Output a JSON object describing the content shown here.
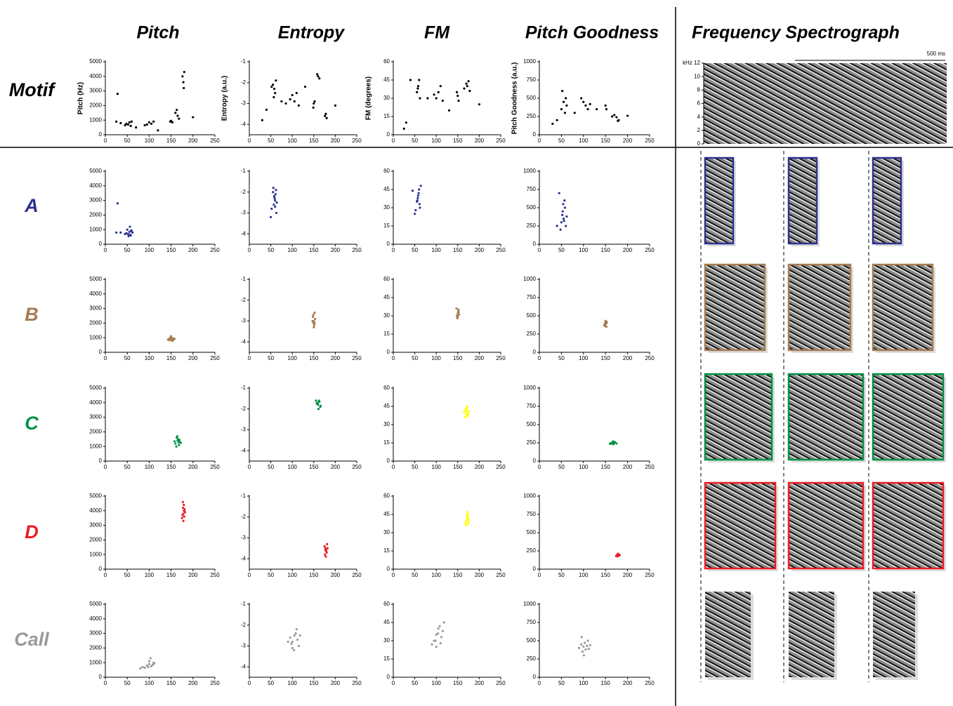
{
  "columns": [
    "Pitch",
    "Entropy",
    "FM",
    "Pitch Goodness",
    "Frequency Spectrograph"
  ],
  "rows": [
    "Motif",
    "A",
    "B",
    "C",
    "D",
    "Call"
  ],
  "spectrograph": {
    "unit": "kHz",
    "ylim": [
      0,
      12
    ],
    "yticks": [
      0,
      2,
      4,
      6,
      8,
      10,
      12
    ],
    "scale_bar": "500 ms"
  },
  "chart_data": [
    {
      "type": "scatter",
      "ylabel": "Pitch (Hz)",
      "color": "#000000",
      "xlim": [
        0,
        250
      ],
      "xticks": [
        0,
        50,
        100,
        150,
        200,
        250
      ],
      "ylim": [
        0,
        5000
      ],
      "yticks": [
        0,
        1000,
        2000,
        3000,
        4000,
        5000
      ],
      "x": [
        52,
        55,
        58,
        48,
        60,
        45,
        35,
        28,
        25,
        150,
        148,
        153,
        165,
        160,
        168,
        163,
        178,
        176,
        180,
        179,
        95,
        100,
        105,
        110,
        90,
        70,
        200,
        120
      ],
      "y": [
        700,
        850,
        600,
        750,
        900,
        650,
        800,
        2800,
        900,
        950,
        900,
        850,
        1300,
        1500,
        1100,
        1700,
        3600,
        4000,
        4300,
        3200,
        700,
        850,
        750,
        900,
        650,
        500,
        1200,
        300
      ]
    },
    {
      "type": "scatter",
      "ylabel": "Entropy (a.u.)",
      "color": "#000000",
      "xlim": [
        0,
        250
      ],
      "xticks": [
        0,
        50,
        100,
        150,
        200,
        250
      ],
      "ylim": [
        -4.5,
        -1
      ],
      "yticks": [
        -1,
        -2,
        -3,
        -4
      ],
      "x": [
        55,
        58,
        60,
        62,
        57,
        52,
        150,
        152,
        149,
        160,
        163,
        158,
        178,
        180,
        176,
        100,
        105,
        110,
        95,
        115,
        40,
        30,
        75,
        85,
        130,
        200
      ],
      "y": [
        -2.1,
        -2.3,
        -2.5,
        -1.9,
        -2.7,
        -2.2,
        -3.0,
        -2.9,
        -3.2,
        -1.7,
        -1.8,
        -1.6,
        -3.5,
        -3.7,
        -3.6,
        -2.6,
        -2.9,
        -2.5,
        -2.8,
        -3.1,
        -3.3,
        -3.8,
        -2.9,
        -3.0,
        -2.2,
        -3.1
      ]
    },
    {
      "type": "scatter",
      "ylabel": "FM (degrees)",
      "color": "#000000",
      "xlim": [
        0,
        250
      ],
      "xticks": [
        0,
        50,
        100,
        150,
        200,
        250
      ],
      "ylim": [
        0,
        60
      ],
      "yticks": [
        0,
        15,
        30,
        45,
        60
      ],
      "x": [
        55,
        58,
        60,
        62,
        57,
        150,
        152,
        148,
        165,
        170,
        175,
        172,
        178,
        100,
        105,
        110,
        115,
        95,
        30,
        40,
        80,
        130,
        200,
        25
      ],
      "y": [
        35,
        40,
        45,
        30,
        38,
        32,
        28,
        35,
        38,
        42,
        44,
        40,
        36,
        30,
        35,
        40,
        28,
        33,
        10,
        45,
        30,
        20,
        25,
        5
      ]
    },
    {
      "type": "scatter",
      "ylabel": "Pitch Goodness (a.u.)",
      "color": "#000000",
      "xlim": [
        0,
        250
      ],
      "xticks": [
        0,
        50,
        100,
        150,
        200,
        250
      ],
      "ylim": [
        0,
        1000
      ],
      "yticks": [
        0,
        250,
        500,
        750,
        1000
      ],
      "x": [
        50,
        55,
        58,
        60,
        52,
        62,
        100,
        105,
        110,
        95,
        115,
        150,
        152,
        165,
        170,
        175,
        180,
        178,
        40,
        30,
        80,
        130,
        200
      ],
      "y": [
        350,
        450,
        300,
        500,
        600,
        400,
        450,
        400,
        350,
        500,
        420,
        400,
        350,
        250,
        270,
        240,
        200,
        190,
        200,
        150,
        300,
        350,
        260
      ]
    },
    {
      "type": "scatter",
      "color": "#2e3192",
      "xlim": [
        0,
        250
      ],
      "xticks": [
        0,
        50,
        100,
        150,
        200,
        250
      ],
      "ylim": [
        0,
        5000
      ],
      "yticks": [
        0,
        1000,
        2000,
        3000,
        4000,
        5000
      ],
      "x": [
        52,
        55,
        58,
        60,
        48,
        62,
        50,
        57,
        45,
        53,
        59,
        35,
        28,
        25,
        56
      ],
      "y": [
        700,
        850,
        600,
        900,
        750,
        800,
        1000,
        650,
        700,
        550,
        950,
        800,
        2800,
        800,
        1200
      ]
    },
    {
      "type": "scatter",
      "color": "#2e3192",
      "xlim": [
        0,
        250
      ],
      "xticks": [
        0,
        50,
        100,
        150,
        200,
        250
      ],
      "ylim": [
        -4.5,
        -1
      ],
      "yticks": [
        -1,
        -2,
        -3,
        -4
      ],
      "x": [
        55,
        58,
        60,
        62,
        57,
        59,
        61,
        52,
        64,
        56,
        60,
        58,
        50,
        63
      ],
      "y": [
        -2.0,
        -2.2,
        -2.4,
        -1.9,
        -2.6,
        -2.3,
        -2.1,
        -2.8,
        -2.5,
        -1.8,
        -2.7,
        -2.2,
        -3.2,
        -3.0
      ]
    },
    {
      "type": "scatter",
      "color": "#2e3192",
      "xlim": [
        0,
        250
      ],
      "xticks": [
        0,
        50,
        100,
        150,
        200,
        250
      ],
      "ylim": [
        0,
        60
      ],
      "yticks": [
        0,
        15,
        30,
        45,
        60
      ],
      "x": [
        55,
        58,
        60,
        62,
        57,
        59,
        61,
        52,
        64,
        56,
        50,
        45
      ],
      "y": [
        35,
        40,
        45,
        30,
        38,
        42,
        33,
        28,
        48,
        36,
        25,
        44
      ]
    },
    {
      "type": "scatter",
      "color": "#2e3192",
      "xlim": [
        0,
        250
      ],
      "xticks": [
        0,
        50,
        100,
        150,
        200,
        250
      ],
      "ylim": [
        0,
        1000
      ],
      "yticks": [
        0,
        250,
        500,
        750,
        1000
      ],
      "x": [
        50,
        52,
        55,
        58,
        60,
        53,
        57,
        45,
        40,
        62,
        56,
        54,
        48
      ],
      "y": [
        300,
        400,
        350,
        500,
        250,
        450,
        600,
        700,
        250,
        380,
        320,
        550,
        200
      ]
    },
    {
      "type": "scatter",
      "color": "#a67c52",
      "xlim": [
        0,
        250
      ],
      "xticks": [
        0,
        50,
        100,
        150,
        200,
        250
      ],
      "ylim": [
        0,
        5000
      ],
      "yticks": [
        0,
        1000,
        2000,
        3000,
        4000,
        5000
      ],
      "x": [
        145,
        150,
        155,
        148,
        152,
        158,
        143,
        150,
        154,
        147,
        153,
        149
      ],
      "y": [
        900,
        950,
        850,
        1000,
        880,
        920,
        870,
        1100,
        960,
        820,
        780,
        930
      ]
    },
    {
      "type": "scatter",
      "color": "#a67c52",
      "xlim": [
        0,
        250
      ],
      "xticks": [
        0,
        50,
        100,
        150,
        200,
        250
      ],
      "ylim": [
        -4.5,
        -1
      ],
      "yticks": [
        -1,
        -2,
        -3,
        -4
      ],
      "x": [
        148,
        150,
        152,
        149,
        151,
        153,
        147,
        150,
        152,
        149
      ],
      "y": [
        -2.8,
        -3.0,
        -3.1,
        -2.7,
        -3.2,
        -2.9,
        -3.0,
        -3.3,
        -2.6,
        -3.1
      ]
    },
    {
      "type": "scatter",
      "color": "#a67c52",
      "xlim": [
        0,
        250
      ],
      "xticks": [
        0,
        50,
        100,
        150,
        200,
        250
      ],
      "ylim": [
        0,
        60
      ],
      "yticks": [
        0,
        15,
        30,
        45,
        60
      ],
      "x": [
        148,
        150,
        152,
        149,
        151,
        153,
        147,
        150,
        152,
        149
      ],
      "y": [
        30,
        32,
        35,
        28,
        34,
        31,
        36,
        29,
        33,
        30
      ]
    },
    {
      "type": "scatter",
      "color": "#a67c52",
      "xlim": [
        0,
        250
      ],
      "xticks": [
        0,
        50,
        100,
        150,
        200,
        250
      ],
      "ylim": [
        0,
        1000
      ],
      "yticks": [
        0,
        250,
        500,
        750,
        1000
      ],
      "x": [
        148,
        150,
        152,
        149,
        151,
        153,
        147,
        150,
        152,
        149
      ],
      "y": [
        380,
        400,
        420,
        360,
        390,
        410,
        370,
        430,
        350,
        400
      ]
    },
    {
      "type": "scatter",
      "color": "#009245",
      "xlim": [
        0,
        250
      ],
      "xticks": [
        0,
        50,
        100,
        150,
        200,
        250
      ],
      "ylim": [
        0,
        5000
      ],
      "yticks": [
        0,
        1000,
        2000,
        3000,
        4000,
        5000
      ],
      "x": [
        160,
        165,
        170,
        163,
        168,
        158,
        172,
        166,
        162,
        169,
        164,
        167
      ],
      "y": [
        1200,
        1400,
        1300,
        1600,
        1100,
        1350,
        1250,
        1500,
        1000,
        1450,
        1700,
        1300
      ]
    },
    {
      "type": "scatter",
      "color": "#009245",
      "xlim": [
        0,
        250
      ],
      "xticks": [
        0,
        50,
        100,
        150,
        200,
        250
      ],
      "ylim": [
        -4.5,
        -1
      ],
      "yticks": [
        -1,
        -2,
        -3,
        -4
      ],
      "x": [
        155,
        158,
        160,
        163,
        165,
        157,
        162,
        166,
        159,
        161
      ],
      "y": [
        -1.6,
        -1.7,
        -1.8,
        -1.65,
        -1.9,
        -1.75,
        -1.6,
        -1.85,
        -1.7,
        -2.0
      ]
    },
    {
      "type": "scatter",
      "color": "#ffff00",
      "xlim": [
        0,
        250
      ],
      "xticks": [
        0,
        50,
        100,
        150,
        200,
        250
      ],
      "ylim": [
        0,
        60
      ],
      "yticks": [
        0,
        15,
        30,
        45,
        60
      ],
      "x": [
        165,
        168,
        170,
        172,
        175,
        167,
        171,
        174,
        169,
        173,
        170,
        166
      ],
      "y": [
        40,
        42,
        38,
        44,
        41,
        36,
        45,
        39,
        43,
        37,
        41,
        40
      ]
    },
    {
      "type": "scatter",
      "color": "#009245",
      "xlim": [
        0,
        250
      ],
      "xticks": [
        0,
        50,
        100,
        150,
        200,
        250
      ],
      "ylim": [
        0,
        1000
      ],
      "yticks": [
        0,
        250,
        500,
        750,
        1000
      ],
      "x": [
        160,
        165,
        170,
        168,
        172,
        163,
        167,
        175,
        162,
        169
      ],
      "y": [
        240,
        250,
        260,
        230,
        255,
        245,
        270,
        240,
        235,
        250
      ]
    },
    {
      "type": "scatter",
      "color": "#ed1c24",
      "xlim": [
        0,
        250
      ],
      "xticks": [
        0,
        50,
        100,
        150,
        200,
        250
      ],
      "ylim": [
        0,
        5000
      ],
      "yticks": [
        0,
        1000,
        2000,
        3000,
        4000,
        5000
      ],
      "x": [
        175,
        178,
        180,
        177,
        182,
        176,
        179,
        181,
        178,
        177,
        180,
        179
      ],
      "y": [
        3500,
        3800,
        4000,
        4200,
        3900,
        3700,
        4400,
        4100,
        3300,
        4600,
        3600,
        4000
      ]
    },
    {
      "type": "scatter",
      "color": "#ed1c24",
      "xlim": [
        0,
        250
      ],
      "xticks": [
        0,
        50,
        100,
        150,
        200,
        250
      ],
      "ylim": [
        -4.5,
        -1
      ],
      "yticks": [
        -1,
        -2,
        -3,
        -4
      ],
      "x": [
        175,
        177,
        178,
        180,
        182,
        176,
        179,
        181,
        178,
        177
      ],
      "y": [
        -3.4,
        -3.5,
        -3.6,
        -3.7,
        -3.5,
        -3.8,
        -3.6,
        -3.3,
        -3.9,
        -3.6
      ]
    },
    {
      "type": "scatter",
      "color": "#ffff00",
      "xlim": [
        0,
        250
      ],
      "xticks": [
        0,
        50,
        100,
        150,
        200,
        250
      ],
      "ylim": [
        0,
        60
      ],
      "yticks": [
        0,
        15,
        30,
        45,
        60
      ],
      "x": [
        168,
        170,
        172,
        174,
        176,
        169,
        171,
        175,
        173,
        170,
        172,
        174
      ],
      "y": [
        38,
        40,
        42,
        45,
        41,
        36,
        44,
        39,
        43,
        40,
        47,
        37
      ]
    },
    {
      "type": "scatter",
      "color": "#ed1c24",
      "xlim": [
        0,
        250
      ],
      "xticks": [
        0,
        50,
        100,
        150,
        200,
        250
      ],
      "ylim": [
        0,
        1000
      ],
      "yticks": [
        0,
        250,
        500,
        750,
        1000
      ],
      "x": [
        174,
        176,
        178,
        180,
        182,
        177,
        179,
        181,
        178,
        176
      ],
      "y": [
        180,
        190,
        200,
        185,
        195,
        175,
        205,
        190,
        210,
        185
      ]
    },
    {
      "type": "scatter",
      "color": "#999999",
      "xlim": [
        0,
        250
      ],
      "xticks": [
        0,
        50,
        100,
        150,
        200,
        250
      ],
      "ylim": [
        0,
        5000
      ],
      "yticks": [
        0,
        1000,
        2000,
        3000,
        4000,
        5000
      ],
      "x": [
        85,
        95,
        100,
        105,
        110,
        90,
        100,
        108,
        112,
        80,
        98,
        103
      ],
      "y": [
        700,
        800,
        900,
        750,
        1000,
        650,
        1100,
        850,
        950,
        600,
        700,
        1300
      ]
    },
    {
      "type": "scatter",
      "color": "#999999",
      "xlim": [
        0,
        250
      ],
      "xticks": [
        0,
        50,
        100,
        150,
        200,
        250
      ],
      "ylim": [
        -4.5,
        -1
      ],
      "yticks": [
        -1,
        -2,
        -3,
        -4
      ],
      "x": [
        95,
        100,
        105,
        110,
        115,
        100,
        108,
        112,
        98,
        104,
        118,
        90
      ],
      "y": [
        -2.6,
        -2.8,
        -2.5,
        -2.2,
        -3.0,
        -3.1,
        -2.4,
        -2.7,
        -2.9,
        -3.2,
        -2.5,
        -2.8
      ]
    },
    {
      "type": "scatter",
      "color": "#999999",
      "xlim": [
        0,
        250
      ],
      "xticks": [
        0,
        50,
        100,
        150,
        200,
        250
      ],
      "ylim": [
        0,
        60
      ],
      "yticks": [
        0,
        15,
        30,
        45,
        60
      ],
      "x": [
        95,
        100,
        105,
        110,
        115,
        100,
        108,
        112,
        98,
        104,
        118,
        90
      ],
      "y": [
        30,
        35,
        40,
        28,
        38,
        25,
        42,
        33,
        30,
        36,
        45,
        27
      ]
    },
    {
      "type": "scatter",
      "color": "#999999",
      "xlim": [
        0,
        250
      ],
      "xticks": [
        0,
        50,
        100,
        150,
        200,
        250
      ],
      "ylim": [
        0,
        1000
      ],
      "yticks": [
        0,
        250,
        500,
        750,
        1000
      ],
      "x": [
        90,
        95,
        100,
        105,
        110,
        98,
        103,
        108,
        112,
        96,
        101,
        115
      ],
      "y": [
        400,
        450,
        420,
        380,
        500,
        350,
        470,
        430,
        390,
        550,
        300,
        440
      ]
    }
  ]
}
